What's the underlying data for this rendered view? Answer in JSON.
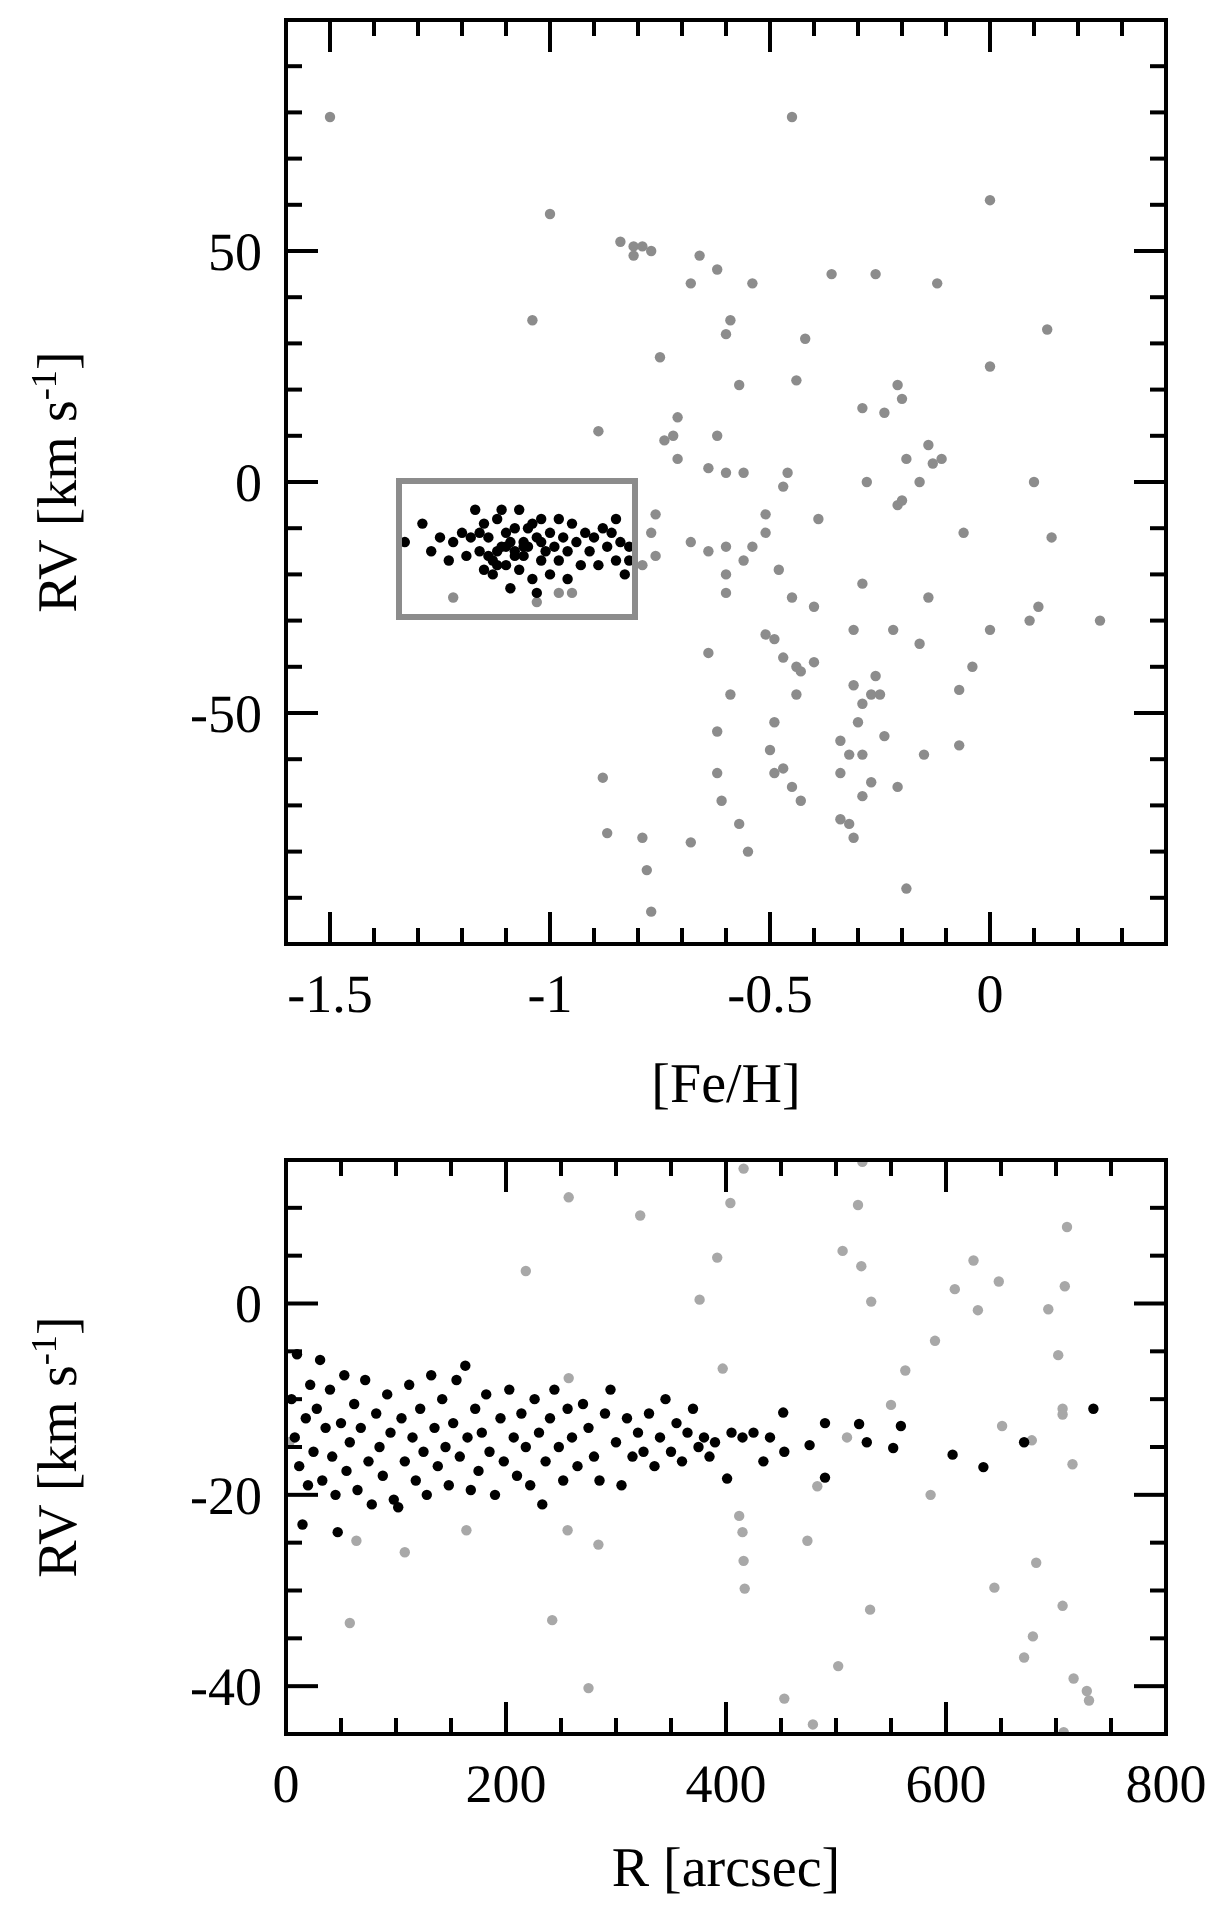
{
  "chart_data": [
    {
      "type": "scatter",
      "xlabel": "[Fe/H]",
      "ylabel": "RV [km s$^{-1}$]",
      "marker": "circle",
      "xlim": [
        -1.6,
        0.4
      ],
      "ylim": [
        -100,
        100
      ],
      "xticks": [
        {
          "value": -1.6,
          "label": null
        },
        -1.5,
        {
          "value": -1.4,
          "label": null
        },
        {
          "value": -1.3,
          "label": null
        },
        {
          "value": -1.2,
          "label": null
        },
        {
          "value": -1.1,
          "label": null
        },
        -1,
        {
          "value": -0.9,
          "label": null
        },
        {
          "value": -0.8,
          "label": null
        },
        {
          "value": -0.7,
          "label": null
        },
        {
          "value": -0.6,
          "label": null
        },
        -0.5,
        {
          "value": -0.4,
          "label": null
        },
        {
          "value": -0.3,
          "label": null
        },
        {
          "value": -0.2,
          "label": null
        },
        {
          "value": -0.1,
          "label": null
        },
        0,
        {
          "value": 0.1,
          "label": null
        },
        {
          "value": 0.2,
          "label": null
        },
        {
          "value": 0.3,
          "label": null
        },
        {
          "value": 0.4,
          "label": null
        }
      ],
      "yticks": [
        {
          "value": -100,
          "label": null
        },
        {
          "value": -90,
          "label": null
        },
        {
          "value": -80,
          "label": null
        },
        {
          "value": -70,
          "label": null
        },
        {
          "value": -60,
          "label": null
        },
        -50,
        {
          "value": -40,
          "label": null
        },
        {
          "value": -30,
          "label": null
        },
        {
          "value": -20,
          "label": null
        },
        {
          "value": -10,
          "label": null
        },
        0,
        {
          "value": 10,
          "label": null
        },
        {
          "value": 20,
          "label": null
        },
        {
          "value": 30,
          "label": null
        },
        {
          "value": 40,
          "label": null
        },
        50,
        {
          "value": 60,
          "label": null
        },
        {
          "value": 70,
          "label": null
        },
        {
          "value": 80,
          "label": null
        },
        {
          "value": 90,
          "label": null
        },
        {
          "value": 100,
          "label": null
        }
      ],
      "series": [
        {
          "color": "#8c8c8c",
          "x": [
            -1.5,
            -0.45,
            0,
            -1.0,
            -0.84,
            -0.81,
            -0.79,
            -0.77,
            -0.81,
            -0.66,
            -0.62,
            -0.68,
            -0.54,
            -0.36,
            -0.26,
            -0.12,
            -1.04,
            -0.59,
            -0.6,
            -0.42,
            0.13,
            -0.75,
            0,
            -0.57,
            -0.44,
            -0.21,
            -0.2,
            -0.29,
            -0.24,
            -0.71,
            -0.89,
            -0.72,
            -0.74,
            -0.62,
            -0.14,
            -0.71,
            -0.19,
            -0.13,
            -0.11,
            -0.64,
            -0.6,
            -0.56,
            -0.46,
            -0.47,
            -0.28,
            -0.16,
            0.1,
            -0.21,
            -0.2,
            -0.76,
            -0.51,
            -0.39,
            -0.77,
            -0.51,
            -0.06,
            0.14,
            -0.76,
            -0.68,
            -0.64,
            -0.6,
            -0.54,
            -0.56,
            -0.79,
            -0.48,
            -0.6,
            -0.6,
            -0.29,
            -0.45,
            -0.4,
            -0.14,
            0.11,
            0.09,
            0.25,
            0,
            -0.31,
            -0.22,
            -0.16,
            -0.51,
            -0.49,
            -0.64,
            -0.47,
            -0.44,
            -0.43,
            -0.4,
            -0.26,
            -0.04,
            -0.07,
            -0.59,
            -0.44,
            -0.31,
            -0.27,
            -0.25,
            -0.29,
            -0.49,
            -0.3,
            -0.24,
            -0.62,
            -0.5,
            -0.34,
            -0.32,
            -0.29,
            -0.15,
            -0.07,
            -0.49,
            -0.47,
            -0.34,
            -0.62,
            -0.88,
            -0.27,
            -0.45,
            -0.21,
            -0.29,
            -0.61,
            -0.43,
            -0.34,
            -0.32,
            -0.57,
            -0.87,
            -0.79,
            -0.68,
            -0.31,
            -0.55,
            -0.78,
            -0.19,
            -0.77,
            -1.22,
            -1.03,
            -0.98,
            -0.95
          ],
          "values": [
            79,
            79,
            61,
            58,
            52,
            51,
            51,
            50,
            49,
            49,
            46,
            43,
            43,
            45,
            45,
            43,
            35,
            35,
            32,
            31,
            33,
            27,
            25,
            21,
            22,
            21,
            18,
            16,
            15,
            14,
            11,
            10,
            9,
            10,
            8,
            5,
            5,
            4,
            5,
            3,
            2,
            2,
            2,
            -1,
            0,
            0,
            0,
            -5,
            -4,
            -7,
            -7,
            -8,
            -11,
            -11,
            -11,
            -12,
            -16,
            -13,
            -15,
            -14,
            -14,
            -17,
            -18,
            -19,
            -20,
            -24,
            -22,
            -25,
            -27,
            -25,
            -27,
            -30,
            -30,
            -32,
            -32,
            -32,
            -35,
            -33,
            -34,
            -37,
            -38,
            -40,
            -41,
            -39,
            -42,
            -40,
            -45,
            -46,
            -46,
            -44,
            -46,
            -46,
            -48,
            -52,
            -52,
            -55,
            -54,
            -58,
            -56,
            -59,
            -59,
            -59,
            -57,
            -63,
            -62,
            -63,
            -63,
            -64,
            -65,
            -66,
            -66,
            -68,
            -69,
            -69,
            -73,
            -74,
            -74,
            -76,
            -77,
            -78,
            -77,
            -80,
            -84,
            -88,
            -93,
            -25,
            -26,
            -24,
            -24
          ]
        },
        {
          "color": "#000000",
          "x": [
            -1.33,
            -1.29,
            -1.27,
            -1.23,
            -1.25,
            -1.22,
            -1.2,
            -1.19,
            -1.18,
            -1.17,
            -1.16,
            -1.15,
            -1.15,
            -1.14,
            -1.13,
            -1.13,
            -1.12,
            -1.11,
            -1.11,
            -1.1,
            -1.1,
            -1.09,
            -1.09,
            -1.08,
            -1.08,
            -1.07,
            -1.07,
            -1.06,
            -1.06,
            -1.05,
            -1.05,
            -1.04,
            -1.04,
            -1.03,
            -1.03,
            -1.02,
            -1.02,
            -1.01,
            -1,
            -1,
            -0.99,
            -0.98,
            -0.98,
            -0.97,
            -0.96,
            -0.96,
            -0.95,
            -0.94,
            -0.93,
            -0.92,
            -0.91,
            -0.9,
            -0.89,
            -0.88,
            -0.87,
            -0.86,
            -0.85,
            -0.85,
            -0.84,
            -0.83,
            -0.82,
            -0.82,
            -1.12,
            -1.08,
            -1.14,
            -1.1,
            -1.06,
            -1.12,
            -1.16,
            -1.02
          ],
          "values": [
            -13,
            -9,
            -15,
            -17,
            -12,
            -13,
            -11,
            -16,
            -12,
            -6,
            -15,
            -19,
            -9,
            -12,
            -17,
            -20,
            -8,
            -6,
            -14,
            -11,
            -18,
            -23,
            -13,
            -10,
            -16,
            -6,
            -19,
            -13,
            -16,
            -10,
            -14,
            -21,
            -9,
            -24,
            -12,
            -17,
            -8,
            -15,
            -11,
            -20,
            -14,
            -8,
            -17,
            -12,
            -15,
            -21,
            -9,
            -13,
            -18,
            -11,
            -15,
            -12,
            -18,
            -10,
            -14,
            -11,
            -8,
            -17,
            -13,
            -20,
            -17,
            -14,
            -15,
            -15,
            -16,
            -14,
            -14,
            -18,
            -11,
            -13
          ]
        }
      ]
    },
    {
      "type": "scatter",
      "xlabel": "R [arcsec]",
      "ylabel": "RV [km s$^{-1}$]",
      "marker": "circle",
      "xlim": [
        0,
        800
      ],
      "ylim": [
        -45,
        15
      ],
      "xticks": [
        0,
        {
          "value": 50,
          "label": null
        },
        {
          "value": 100,
          "label": null
        },
        {
          "value": 150,
          "label": null
        },
        200,
        {
          "value": 250,
          "label": null
        },
        {
          "value": 300,
          "label": null
        },
        {
          "value": 350,
          "label": null
        },
        400,
        {
          "value": 450,
          "label": null
        },
        {
          "value": 500,
          "label": null
        },
        {
          "value": 550,
          "label": null
        },
        600,
        {
          "value": 650,
          "label": null
        },
        {
          "value": 700,
          "label": null
        },
        {
          "value": 750,
          "label": null
        },
        800
      ],
      "yticks": [
        {
          "value": -45,
          "label": null
        },
        -40,
        {
          "value": -35,
          "label": null
        },
        {
          "value": -30,
          "label": null
        },
        {
          "value": -25,
          "label": null
        },
        -20,
        {
          "value": -15,
          "label": null
        },
        {
          "value": -10,
          "label": null
        },
        {
          "value": -5,
          "label": null
        },
        0,
        {
          "value": 5,
          "label": null
        },
        {
          "value": 10,
          "label": null
        },
        {
          "value": 15,
          "label": null
        }
      ],
      "series": [
        {
          "color": "#a8a8a8",
          "x": [
            416,
            524,
            257,
            404,
            322,
            520,
            710,
            218,
            392,
            506,
            523,
            625,
            648,
            608,
            629,
            708,
            376,
            532,
            693,
            590,
            397,
            563,
            702,
            257,
            550,
            706,
            706,
            651,
            510,
            678,
            715,
            483,
            586,
            412,
            415,
            164,
            256,
            64,
            284,
            474,
            108,
            416,
            682,
            417,
            644,
            706,
            531,
            242,
            58,
            679,
            671,
            502,
            275,
            716,
            728,
            730,
            453,
            479,
            707,
            3
          ],
          "values": [
            14.1,
            14.8,
            11.1,
            10.5,
            9.2,
            10.3,
            8,
            3.4,
            4.8,
            5.5,
            3.9,
            4.5,
            2.3,
            1.5,
            -0.7,
            1.8,
            0.4,
            0.2,
            -0.6,
            -3.9,
            -6.8,
            -7,
            -5.4,
            -7.8,
            -10.6,
            -11,
            -11.6,
            -12.8,
            -14,
            -14.3,
            -16.8,
            -19.1,
            -20,
            -22.2,
            -23.9,
            -23.7,
            -23.7,
            -24.8,
            -25.2,
            -24.8,
            -26,
            -26.9,
            -27.1,
            -29.8,
            -29.7,
            -31.6,
            -32,
            -33.1,
            -33.4,
            -34.8,
            -37,
            -37.9,
            -40.2,
            -39.2,
            -40.5,
            -41.5,
            -41.3,
            -44,
            -44.8,
            -14.5
          ]
        },
        {
          "color": "#000000",
          "x": [
            5,
            8,
            10,
            12,
            15,
            18,
            20,
            22,
            25,
            28,
            31,
            33,
            36,
            40,
            42,
            45,
            47,
            50,
            53,
            55,
            58,
            62,
            65,
            68,
            72,
            75,
            78,
            82,
            85,
            88,
            92,
            95,
            98,
            102,
            105,
            108,
            112,
            115,
            118,
            122,
            125,
            128,
            132,
            135,
            138,
            142,
            145,
            148,
            152,
            155,
            158,
            163,
            165,
            168,
            172,
            175,
            178,
            182,
            185,
            190,
            195,
            198,
            203,
            207,
            210,
            214,
            218,
            222,
            226,
            230,
            233,
            236,
            240,
            244,
            248,
            252,
            256,
            260,
            265,
            270,
            275,
            280,
            285,
            290,
            295,
            300,
            305,
            310,
            315,
            320,
            325,
            330,
            335,
            340,
            345,
            350,
            355,
            360,
            365,
            370,
            375,
            380,
            385,
            390,
            401,
            405,
            415,
            425,
            434,
            440,
            452,
            453,
            476,
            490,
            490,
            521,
            528,
            552,
            559,
            606,
            634,
            671,
            734
          ],
          "values": [
            -10,
            -14,
            -5.3,
            -17,
            -23.1,
            -12,
            -19,
            -8.5,
            -15.5,
            -11,
            -5.9,
            -18.5,
            -13,
            -9,
            -16,
            -20,
            -23.9,
            -12.5,
            -7.5,
            -17.5,
            -14.5,
            -10.5,
            -19.5,
            -13,
            -8,
            -16.5,
            -21,
            -11.5,
            -15,
            -18,
            -9.5,
            -13.5,
            -20.5,
            -21.3,
            -12,
            -16.5,
            -8.5,
            -14,
            -18.5,
            -11,
            -15.5,
            -20,
            -7.5,
            -13,
            -17,
            -10,
            -15,
            -19,
            -12.5,
            -8,
            -16,
            -6.5,
            -14,
            -19.5,
            -11,
            -17.5,
            -13.5,
            -9.5,
            -15.5,
            -20,
            -12,
            -16.5,
            -9,
            -14,
            -18,
            -11.5,
            -15,
            -19,
            -10,
            -13.5,
            -21,
            -16.5,
            -12,
            -9,
            -15,
            -18.5,
            -11,
            -14,
            -17,
            -10.5,
            -13,
            -16,
            -18.5,
            -11.5,
            -9,
            -14.5,
            -19,
            -12,
            -16,
            -13.5,
            -15.5,
            -11.5,
            -17,
            -14,
            -10,
            -15.5,
            -12.5,
            -16.5,
            -13.5,
            -11,
            -15,
            -14,
            -16,
            -14.5,
            -18.3,
            -13.5,
            -14,
            -13.5,
            -16.5,
            -14,
            -11.4,
            -15.5,
            -14.8,
            -12.5,
            -18.2,
            -12.6,
            -14.5,
            -15.1,
            -12.8,
            -15.8,
            -17.1,
            -14.5,
            -11
          ]
        }
      ]
    }
  ]
}
